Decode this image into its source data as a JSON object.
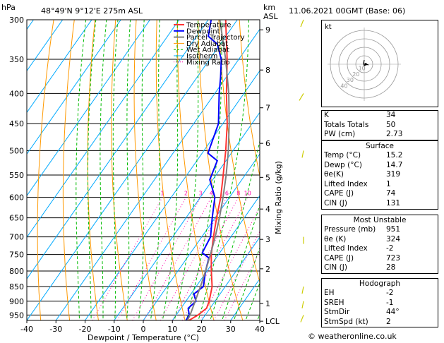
{
  "header": {
    "hpa": "hPa",
    "location": "48°49'N  9°12'E  275m  ASL",
    "km": "km",
    "asl": "ASL",
    "datetime": "11.06.2021  00GMT  (Base: 06)"
  },
  "legend": [
    "Temperature",
    "Dewpoint",
    "Parcel Trajectory",
    "Dry Adiabat",
    "Wet Adiabat",
    "Isotherm",
    "Mixing Ratio"
  ],
  "colors": {
    "temperature": "#ff3333",
    "dewpoint": "#0000ff",
    "parcel": "#808080",
    "dry_adiabat": "#ff9900",
    "wet_adiabat": "#00bb00",
    "isotherm": "#00aaff",
    "mixing_ratio": "#ff00aa"
  },
  "chart_data": {
    "type": "line",
    "xlabel": "Dewpoint / Temperature (°C)",
    "ylabel": "Mixing Ratio (g/kg)",
    "y_left_unit": "hPa",
    "x_ticks": [
      -40,
      -30,
      -20,
      -10,
      0,
      10,
      20,
      30,
      40
    ],
    "pressure_ticks": [
      300,
      350,
      400,
      450,
      500,
      550,
      600,
      650,
      700,
      750,
      800,
      850,
      900,
      950
    ],
    "km_ticks": [
      {
        "p": 312,
        "km": "9"
      },
      {
        "p": 365,
        "km": "8"
      },
      {
        "p": 423,
        "km": "7"
      },
      {
        "p": 486,
        "km": "6"
      },
      {
        "p": 555,
        "km": "5"
      },
      {
        "p": 628,
        "km": "4"
      },
      {
        "p": 707,
        "km": "3"
      },
      {
        "p": 793,
        "km": "2"
      },
      {
        "p": 908,
        "km": "1"
      },
      {
        "p": 973,
        "km": "LCL"
      }
    ],
    "mixing_ratio_labels": [
      "1",
      "2",
      "3",
      "4",
      "6",
      "8",
      "10",
      "15",
      "20",
      "25"
    ],
    "mixing_ratio_values": [
      1,
      2,
      3,
      4,
      6,
      8,
      10,
      15,
      20,
      25
    ],
    "series": [
      {
        "name": "Temperature",
        "points": [
          [
            975,
            15.2
          ],
          [
            950,
            17.5
          ],
          [
            925,
            18.8
          ],
          [
            900,
            18.0
          ],
          [
            850,
            15.5
          ],
          [
            800,
            11.5
          ],
          [
            750,
            7.5
          ],
          [
            700,
            4.0
          ],
          [
            650,
            0.5
          ],
          [
            600,
            -3.0
          ],
          [
            550,
            -7.5
          ],
          [
            500,
            -12.5
          ],
          [
            450,
            -18.5
          ],
          [
            400,
            -26.0
          ],
          [
            350,
            -34.0
          ],
          [
            300,
            -44.0
          ]
        ]
      },
      {
        "name": "Dewpoint",
        "points": [
          [
            975,
            14.7
          ],
          [
            950,
            14.5
          ],
          [
            925,
            12.5
          ],
          [
            900,
            13.5
          ],
          [
            875,
            11.0
          ],
          [
            850,
            12.5
          ],
          [
            800,
            9.5
          ],
          [
            760,
            7.5
          ],
          [
            745,
            4.0
          ],
          [
            700,
            3.0
          ],
          [
            650,
            -1.0
          ],
          [
            600,
            -5.0
          ],
          [
            560,
            -11.0
          ],
          [
            520,
            -13.0
          ],
          [
            505,
            -18.0
          ],
          [
            450,
            -21.5
          ],
          [
            400,
            -28.5
          ],
          [
            375,
            -32.0
          ],
          [
            350,
            -36.0
          ],
          [
            330,
            -41.0
          ],
          [
            320,
            -46.0
          ],
          [
            300,
            -49.0
          ]
        ]
      },
      {
        "name": "Parcel Trajectory",
        "points": [
          [
            975,
            15.2
          ],
          [
            950,
            14.8
          ],
          [
            900,
            13.2
          ],
          [
            850,
            11.5
          ],
          [
            800,
            9.5
          ],
          [
            750,
            7.2
          ],
          [
            700,
            4.6
          ],
          [
            650,
            1.5
          ],
          [
            600,
            -2.2
          ],
          [
            550,
            -6.5
          ],
          [
            500,
            -11.6
          ],
          [
            450,
            -17.8
          ],
          [
            400,
            -25.2
          ],
          [
            350,
            -34.5
          ],
          [
            300,
            -46.0
          ]
        ]
      }
    ]
  },
  "indices": {
    "rows": [
      {
        "label": "K",
        "value": "34"
      },
      {
        "label": "Totals Totals",
        "value": "50"
      },
      {
        "label": "PW (cm)",
        "value": "2.73"
      }
    ]
  },
  "surface": {
    "title": "Surface",
    "rows": [
      {
        "label": "Temp (°C)",
        "value": "15.2"
      },
      {
        "label": "Dewp (°C)",
        "value": "14.7"
      },
      {
        "label": "θe(K)",
        "value": "319"
      },
      {
        "label": "Lifted Index",
        "value": "1"
      },
      {
        "label": "CAPE (J)",
        "value": "74"
      },
      {
        "label": "CIN (J)",
        "value": "131"
      }
    ]
  },
  "most_unstable": {
    "title": "Most Unstable",
    "rows": [
      {
        "label": "Pressure (mb)",
        "value": "951"
      },
      {
        "label": "θe (K)",
        "value": "324"
      },
      {
        "label": "Lifted Index",
        "value": "-2"
      },
      {
        "label": "CAPE (J)",
        "value": "723"
      },
      {
        "label": "CIN (J)",
        "value": "28"
      }
    ]
  },
  "hodograph": {
    "title": "Hodograph",
    "kt": "kt",
    "ring_labels": [
      "10",
      "20",
      "30",
      "40"
    ],
    "rows": [
      {
        "label": "EH",
        "value": "-2"
      },
      {
        "label": "SREH",
        "value": "-1"
      },
      {
        "label": "StmDir",
        "value": "44°"
      },
      {
        "label": "StmSpd (kt)",
        "value": "2"
      }
    ]
  },
  "footer": "© weatheronline.co.uk"
}
